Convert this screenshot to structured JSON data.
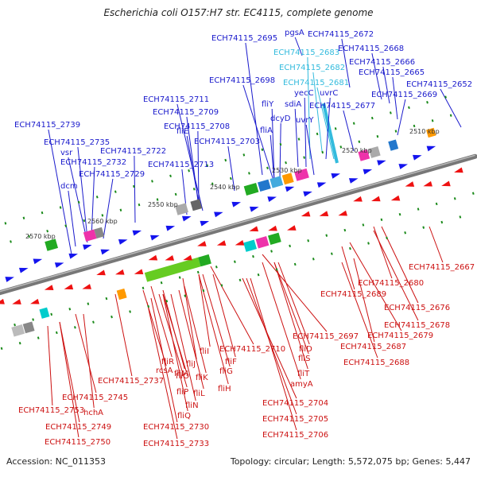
{
  "title": "Escherichia coli O157:H7 str. EC4115, complete genome",
  "footer": {
    "accession": "Accession: NC_011353",
    "summary": "Topology: circular; Length: 5,572,075 bp; Genes: 5,447"
  },
  "colors": {
    "forward_label": "#1a1acc",
    "reverse_label": "#cc1111",
    "highlight_label": "#33bbdd",
    "forward_arrow": "#1414ee",
    "reverse_arrow": "#ee1111",
    "backbone": "#777777",
    "tick": "#1a8a1a"
  },
  "scale_ticks": [
    "2510 kbp",
    "2520 kbp",
    "2530 kbp",
    "2540 kbp",
    "2550 kbp",
    "2560 kbp",
    "2570 kbp"
  ],
  "forward_labels": [
    {
      "text": "pgsA",
      "color": "forward"
    },
    {
      "text": "ECH74115_2672",
      "color": "forward"
    },
    {
      "text": "ECH74115_2695",
      "color": "forward"
    },
    {
      "text": "ECH74115_2683",
      "color": "highlight"
    },
    {
      "text": "ECH74115_2668",
      "color": "forward"
    },
    {
      "text": "ECH74115_2666",
      "color": "forward"
    },
    {
      "text": "ECH74115_2682",
      "color": "highlight"
    },
    {
      "text": "ECH74115_2665",
      "color": "forward"
    },
    {
      "text": "ECH74115_2698",
      "color": "forward"
    },
    {
      "text": "ECH74115_2681",
      "color": "highlight"
    },
    {
      "text": "ECH74115_2652",
      "color": "forward"
    },
    {
      "text": "yecC",
      "color": "forward"
    },
    {
      "text": "uvrC",
      "color": "forward"
    },
    {
      "text": "ECH74115_2669",
      "color": "forward"
    },
    {
      "text": "ECH74115_2711",
      "color": "forward"
    },
    {
      "text": "fliY",
      "color": "forward"
    },
    {
      "text": "sdiA",
      "color": "forward"
    },
    {
      "text": "ECH74115_2677",
      "color": "forward"
    },
    {
      "text": "ECH74115_2709",
      "color": "forward"
    },
    {
      "text": "dcyD",
      "color": "forward"
    },
    {
      "text": "uvrY",
      "color": "forward"
    },
    {
      "text": "ECH74115_2739",
      "color": "forward"
    },
    {
      "text": "ECH74115_2708",
      "color": "forward"
    },
    {
      "text": "fliA",
      "color": "forward"
    },
    {
      "text": "fliE",
      "color": "forward"
    },
    {
      "text": "ECH74115_2735",
      "color": "forward"
    },
    {
      "text": "ECH74115_2703",
      "color": "forward"
    },
    {
      "text": "vsr",
      "color": "forward"
    },
    {
      "text": "ECH74115_2722",
      "color": "forward"
    },
    {
      "text": "ECH74115_2732",
      "color": "forward"
    },
    {
      "text": "ECH74115_2713",
      "color": "forward"
    },
    {
      "text": "ECH74115_2729",
      "color": "forward"
    },
    {
      "text": "dcm",
      "color": "forward"
    }
  ],
  "reverse_labels": [
    {
      "text": "ECH74115_2667"
    },
    {
      "text": "ECH74115_2680"
    },
    {
      "text": "ECH74115_2689"
    },
    {
      "text": "ECH74115_2676"
    },
    {
      "text": "ECH74115_2678"
    },
    {
      "text": "ECH74115_2679"
    },
    {
      "text": "ECH74115_2697"
    },
    {
      "text": "ECH74115_2687"
    },
    {
      "text": "fliD"
    },
    {
      "text": "ECH74115_2710"
    },
    {
      "text": "fliI"
    },
    {
      "text": "fliS"
    },
    {
      "text": "fliR"
    },
    {
      "text": "fliJ"
    },
    {
      "text": "fliF"
    },
    {
      "text": "ECH74115_2688"
    },
    {
      "text": "rcsA"
    },
    {
      "text": "fliM"
    },
    {
      "text": "fliG"
    },
    {
      "text": "fliO"
    },
    {
      "text": "fliK"
    },
    {
      "text": "fliT"
    },
    {
      "text": "ECH74115_2737"
    },
    {
      "text": "amyA"
    },
    {
      "text": "fliH"
    },
    {
      "text": "fliP"
    },
    {
      "text": "fliL"
    },
    {
      "text": "ECH74115_2745"
    },
    {
      "text": "fliN"
    },
    {
      "text": "ECH74115_2704"
    },
    {
      "text": "ECH74115_2753"
    },
    {
      "text": "hchA"
    },
    {
      "text": "fliQ"
    },
    {
      "text": "ECH74115_2705"
    },
    {
      "text": "ECH74115_2749"
    },
    {
      "text": "ECH74115_2730"
    },
    {
      "text": "ECH74115_2706"
    },
    {
      "text": "ECH74115_2750"
    },
    {
      "text": "ECH74115_2733"
    }
  ]
}
